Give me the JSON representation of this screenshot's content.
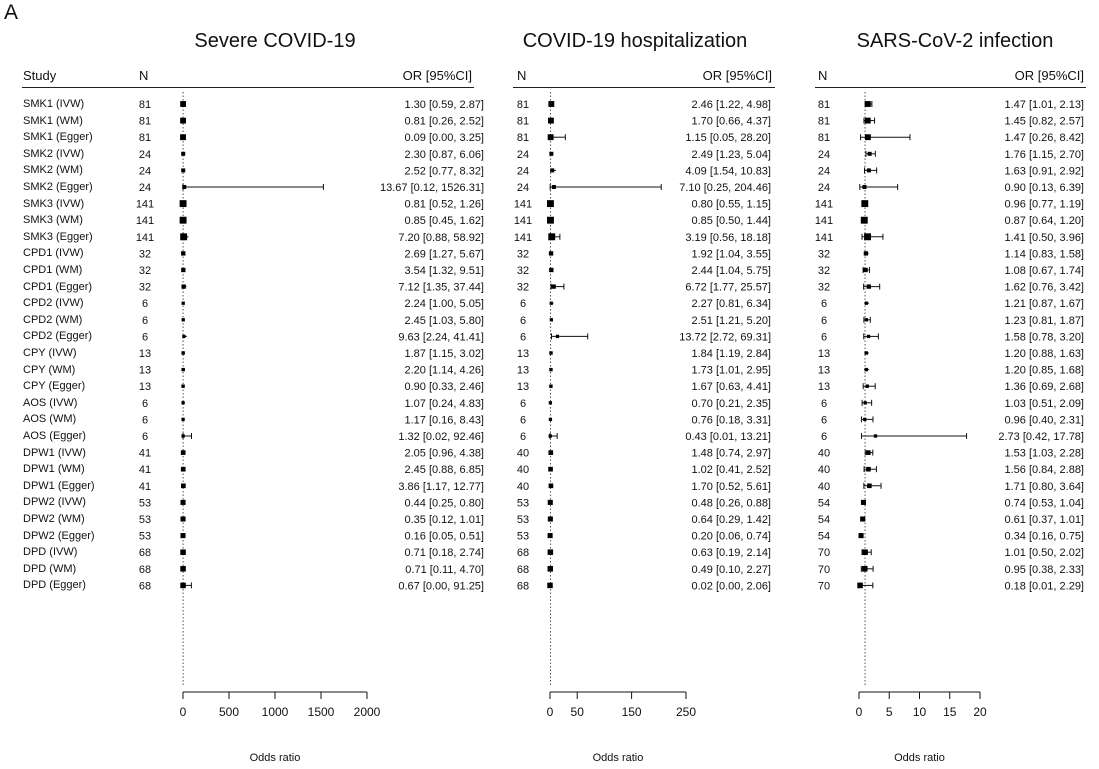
{
  "panel_label": "A",
  "headers": {
    "study": "Study",
    "n": "N",
    "or": "OR [95%CI]"
  },
  "studies": [
    "SMK1 (IVW)",
    "SMK1 (WM)",
    "SMK1 (Egger)",
    "SMK2 (IVW)",
    "SMK2 (WM)",
    "SMK2 (Egger)",
    "SMK3 (IVW)",
    "SMK3 (WM)",
    "SMK3 (Egger)",
    "CPD1 (IVW)",
    "CPD1 (WM)",
    "CPD1 (Egger)",
    "CPD2 (IVW)",
    "CPD2 (WM)",
    "CPD2 (Egger)",
    "CPY (IVW)",
    "CPY (WM)",
    "CPY (Egger)",
    "AOS (IVW)",
    "AOS (WM)",
    "AOS (Egger)",
    "DPW1 (IVW)",
    "DPW1 (WM)",
    "DPW1 (Egger)",
    "DPW2 (IVW)",
    "DPW2 (WM)",
    "DPW2 (Egger)",
    "DPD (IVW)",
    "DPD (WM)",
    "DPD (Egger)"
  ],
  "chart_data": [
    {
      "type": "forest",
      "title": "Severe COVID-19",
      "xlabel": "Odds ratio",
      "xlim": [
        0,
        2000
      ],
      "xticks": [
        0,
        500,
        1000,
        1500,
        2000
      ],
      "reference_line": 1,
      "n": [
        "81",
        "81",
        "81",
        "24",
        "24",
        "24",
        "141",
        "141",
        "141",
        "32",
        "32",
        "32",
        "6",
        "6",
        "6",
        "13",
        "13",
        "13",
        "6",
        "6",
        "6",
        "41",
        "41",
        "41",
        "53",
        "53",
        "53",
        "68",
        "68",
        "68"
      ],
      "or": [
        1.3,
        0.81,
        0.09,
        2.3,
        2.52,
        13.67,
        0.81,
        0.85,
        7.2,
        2.69,
        3.54,
        7.12,
        2.24,
        2.45,
        9.63,
        1.87,
        2.2,
        0.9,
        1.07,
        1.17,
        1.32,
        2.05,
        2.45,
        3.86,
        0.44,
        0.35,
        0.16,
        0.71,
        0.71,
        0.67
      ],
      "lo": [
        0.59,
        0.26,
        0.0,
        0.87,
        0.77,
        0.12,
        0.52,
        0.45,
        0.88,
        1.27,
        1.32,
        1.35,
        1.0,
        1.03,
        2.24,
        1.15,
        1.14,
        0.33,
        0.24,
        0.16,
        0.02,
        0.96,
        0.88,
        1.17,
        0.25,
        0.12,
        0.05,
        0.18,
        0.11,
        0.0
      ],
      "hi": [
        2.87,
        2.52,
        3.25,
        6.06,
        8.32,
        1526.31,
        1.26,
        1.62,
        58.92,
        5.67,
        9.51,
        37.44,
        5.05,
        5.8,
        41.41,
        3.02,
        4.26,
        2.46,
        4.83,
        8.43,
        92.46,
        4.38,
        6.85,
        12.77,
        0.8,
        1.01,
        0.51,
        2.74,
        4.7,
        91.25
      ],
      "labels": [
        "1.30 [0.59, 2.87]",
        "0.81 [0.26, 2.52]",
        "0.09 [0.00, 3.25]",
        "2.30 [0.87, 6.06]",
        "2.52 [0.77, 8.32]",
        "13.67 [0.12, 1526.31]",
        "0.81 [0.52, 1.26]",
        "0.85 [0.45, 1.62]",
        "7.20 [0.88, 58.92]",
        "2.69 [1.27, 5.67]",
        "3.54 [1.32, 9.51]",
        "7.12 [1.35, 37.44]",
        "2.24 [1.00, 5.05]",
        "2.45 [1.03, 5.80]",
        "9.63 [2.24, 41.41]",
        "1.87 [1.15, 3.02]",
        "2.20 [1.14, 4.26]",
        "0.90 [0.33, 2.46]",
        "1.07 [0.24, 4.83]",
        "1.17 [0.16, 8.43]",
        "1.32 [0.02, 92.46]",
        "2.05 [0.96, 4.38]",
        "2.45 [0.88, 6.85]",
        "3.86 [1.17, 12.77]",
        "0.44 [0.25, 0.80]",
        "0.35 [0.12, 1.01]",
        "0.16 [0.05, 0.51]",
        "0.71 [0.18, 2.74]",
        "0.71 [0.11, 4.70]",
        "0.67 [0.00, 91.25]"
      ]
    },
    {
      "type": "forest",
      "title": "COVID-19 hospitalization",
      "xlabel": "Odds ratio",
      "xlim": [
        0,
        250
      ],
      "xticks": [
        0,
        50,
        150,
        250
      ],
      "reference_line": 1,
      "n": [
        "81",
        "81",
        "81",
        "24",
        "24",
        "24",
        "141",
        "141",
        "141",
        "32",
        "32",
        "32",
        "6",
        "6",
        "6",
        "13",
        "13",
        "13",
        "6",
        "6",
        "6",
        "40",
        "40",
        "40",
        "53",
        "53",
        "53",
        "68",
        "68",
        "68"
      ],
      "or": [
        2.46,
        1.7,
        1.15,
        2.49,
        4.09,
        7.1,
        0.8,
        0.85,
        3.19,
        1.92,
        2.44,
        6.72,
        2.27,
        2.51,
        13.72,
        1.84,
        1.73,
        1.67,
        0.7,
        0.76,
        0.43,
        1.48,
        1.02,
        1.7,
        0.48,
        0.64,
        0.2,
        0.63,
        0.49,
        0.02
      ],
      "lo": [
        1.22,
        0.66,
        0.05,
        1.23,
        1.54,
        0.25,
        0.55,
        0.5,
        0.56,
        1.04,
        1.04,
        1.77,
        0.81,
        1.21,
        2.72,
        1.19,
        1.01,
        0.63,
        0.21,
        0.18,
        0.01,
        0.74,
        0.41,
        0.52,
        0.26,
        0.29,
        0.06,
        0.19,
        0.1,
        0.0
      ],
      "hi": [
        4.98,
        4.37,
        28.2,
        5.04,
        10.83,
        204.46,
        1.15,
        1.44,
        18.18,
        3.55,
        5.75,
        25.57,
        6.34,
        5.2,
        69.31,
        2.84,
        2.95,
        4.41,
        2.35,
        3.31,
        13.21,
        2.97,
        2.52,
        5.61,
        0.88,
        1.42,
        0.74,
        2.14,
        2.27,
        2.06
      ],
      "labels": [
        "2.46 [1.22, 4.98]",
        "1.70 [0.66, 4.37]",
        "1.15 [0.05, 28.20]",
        "2.49 [1.23, 5.04]",
        "4.09 [1.54, 10.83]",
        "7.10 [0.25, 204.46]",
        "0.80 [0.55, 1.15]",
        "0.85 [0.50, 1.44]",
        "3.19 [0.56, 18.18]",
        "1.92 [1.04, 3.55]",
        "2.44 [1.04, 5.75]",
        "6.72 [1.77, 25.57]",
        "2.27 [0.81, 6.34]",
        "2.51 [1.21, 5.20]",
        "13.72 [2.72, 69.31]",
        "1.84 [1.19, 2.84]",
        "1.73 [1.01, 2.95]",
        "1.67 [0.63, 4.41]",
        "0.70 [0.21, 2.35]",
        "0.76 [0.18, 3.31]",
        "0.43 [0.01, 13.21]",
        "1.48 [0.74, 2.97]",
        "1.02 [0.41, 2.52]",
        "1.70 [0.52, 5.61]",
        "0.48 [0.26, 0.88]",
        "0.64 [0.29, 1.42]",
        "0.20 [0.06, 0.74]",
        "0.63 [0.19, 2.14]",
        "0.49 [0.10, 2.27]",
        "0.02 [0.00, 2.06]"
      ]
    },
    {
      "type": "forest",
      "title": "SARS-CoV-2 infection",
      "xlabel": "Odds ratio",
      "xlim": [
        0,
        20
      ],
      "xticks": [
        0,
        5,
        10,
        15,
        20
      ],
      "reference_line": 1,
      "n": [
        "81",
        "81",
        "81",
        "24",
        "24",
        "24",
        "141",
        "141",
        "141",
        "32",
        "32",
        "32",
        "6",
        "6",
        "6",
        "13",
        "13",
        "13",
        "6",
        "6",
        "6",
        "40",
        "40",
        "40",
        "54",
        "54",
        "54",
        "70",
        "70",
        "70"
      ],
      "or": [
        1.47,
        1.45,
        1.47,
        1.76,
        1.63,
        0.9,
        0.96,
        0.87,
        1.41,
        1.14,
        1.08,
        1.62,
        1.21,
        1.23,
        1.58,
        1.2,
        1.2,
        1.36,
        1.03,
        0.96,
        2.73,
        1.53,
        1.56,
        1.71,
        0.74,
        0.61,
        0.34,
        1.01,
        0.95,
        0.18
      ],
      "lo": [
        1.01,
        0.82,
        0.26,
        1.15,
        0.91,
        0.13,
        0.77,
        0.64,
        0.5,
        0.83,
        0.67,
        0.76,
        0.87,
        0.81,
        0.78,
        0.88,
        0.85,
        0.69,
        0.51,
        0.4,
        0.42,
        1.03,
        0.84,
        0.8,
        0.53,
        0.37,
        0.16,
        0.5,
        0.38,
        0.01
      ],
      "hi": [
        2.13,
        2.57,
        8.42,
        2.7,
        2.92,
        6.39,
        1.19,
        1.2,
        3.96,
        1.58,
        1.74,
        3.42,
        1.67,
        1.87,
        3.2,
        1.63,
        1.68,
        2.68,
        2.09,
        2.31,
        17.78,
        2.28,
        2.88,
        3.64,
        1.04,
        1.01,
        0.75,
        2.02,
        2.33,
        2.29
      ],
      "labels": [
        "1.47 [1.01, 2.13]",
        "1.45 [0.82, 2.57]",
        "1.47 [0.26, 8.42]",
        "1.76 [1.15, 2.70]",
        "1.63 [0.91, 2.92]",
        "0.90 [0.13, 6.39]",
        "0.96 [0.77, 1.19]",
        "0.87 [0.64, 1.20]",
        "1.41 [0.50, 3.96]",
        "1.14 [0.83, 1.58]",
        "1.08 [0.67, 1.74]",
        "1.62 [0.76, 3.42]",
        "1.21 [0.87, 1.67]",
        "1.23 [0.81, 1.87]",
        "1.58 [0.78, 3.20]",
        "1.20 [0.88, 1.63]",
        "1.20 [0.85, 1.68]",
        "1.36 [0.69, 2.68]",
        "1.03 [0.51, 2.09]",
        "0.96 [0.40, 2.31]",
        "2.73 [0.42, 17.78]",
        "1.53 [1.03, 2.28]",
        "1.56 [0.84, 2.88]",
        "1.71 [0.80, 3.64]",
        "0.74 [0.53, 1.04]",
        "0.61 [0.37, 1.01]",
        "0.34 [0.16, 0.75]",
        "1.01 [0.50, 2.02]",
        "0.95 [0.38, 2.33]",
        "0.18 [0.01, 2.29]"
      ]
    }
  ]
}
